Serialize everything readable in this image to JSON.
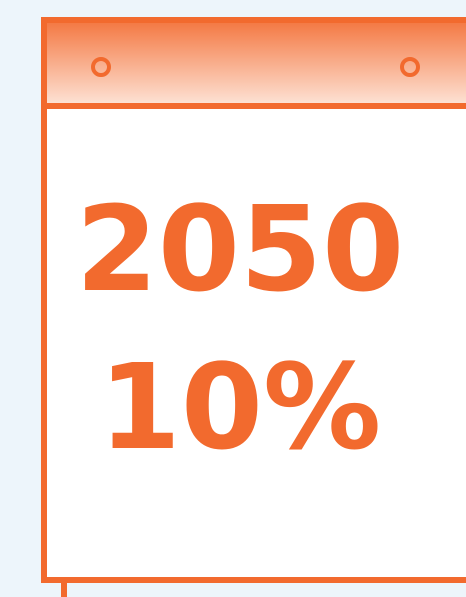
{
  "year": "2050",
  "percentage": "10%"
}
